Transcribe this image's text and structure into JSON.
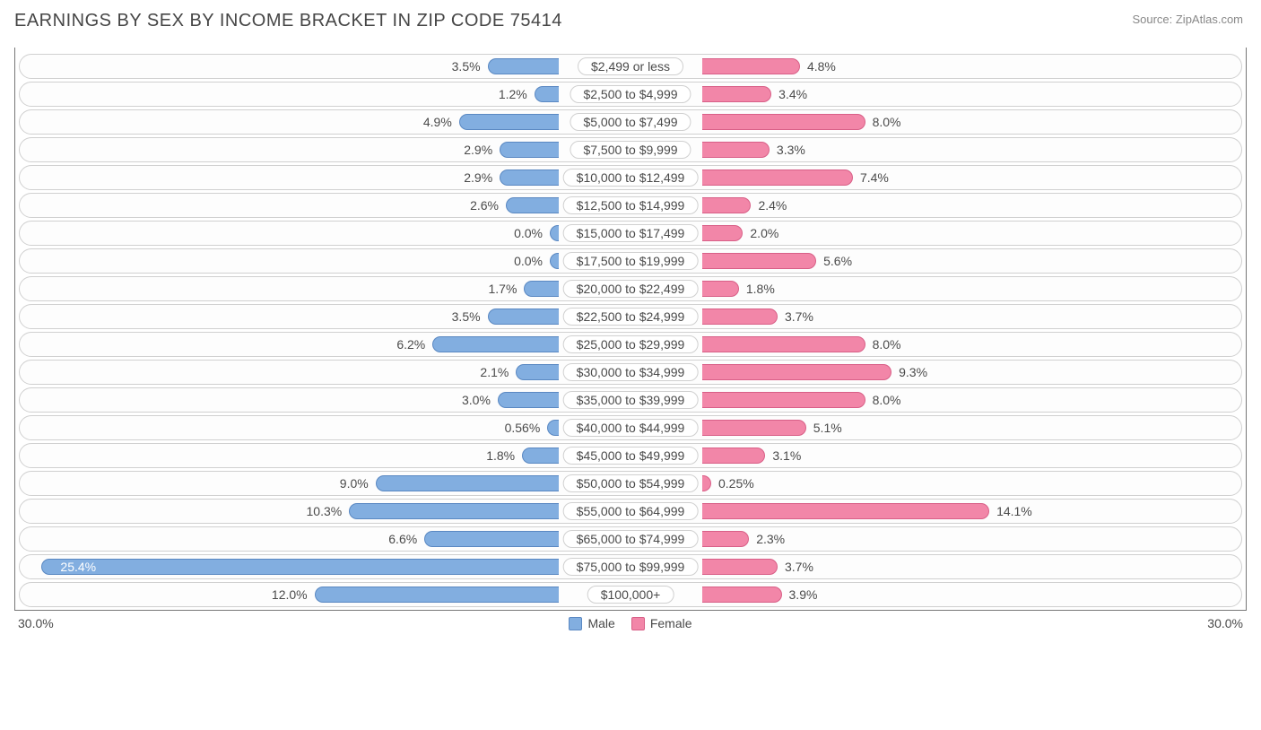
{
  "title": "EARNINGS BY SEX BY INCOME BRACKET IN ZIP CODE 75414",
  "source": "Source: ZipAtlas.com",
  "chart": {
    "type": "diverging-bar",
    "axis_max": 30.0,
    "axis_label_left": "30.0%",
    "axis_label_right": "30.0%",
    "colors": {
      "male_fill": "#82aee0",
      "male_border": "#5a88c2",
      "female_fill": "#f286a8",
      "female_border": "#d85f87",
      "row_border": "#d0d0d0",
      "row_bg": "#fdfdfd",
      "text": "#4a4a4a",
      "axis": "#777777"
    },
    "legend": {
      "male_label": "Male",
      "female_label": "Female"
    },
    "rows": [
      {
        "category": "$2,499 or less",
        "male": 3.5,
        "male_label": "3.5%",
        "female": 4.8,
        "female_label": "4.8%"
      },
      {
        "category": "$2,500 to $4,999",
        "male": 1.2,
        "male_label": "1.2%",
        "female": 3.4,
        "female_label": "3.4%"
      },
      {
        "category": "$5,000 to $7,499",
        "male": 4.9,
        "male_label": "4.9%",
        "female": 8.0,
        "female_label": "8.0%"
      },
      {
        "category": "$7,500 to $9,999",
        "male": 2.9,
        "male_label": "2.9%",
        "female": 3.3,
        "female_label": "3.3%"
      },
      {
        "category": "$10,000 to $12,499",
        "male": 2.9,
        "male_label": "2.9%",
        "female": 7.4,
        "female_label": "7.4%"
      },
      {
        "category": "$12,500 to $14,999",
        "male": 2.6,
        "male_label": "2.6%",
        "female": 2.4,
        "female_label": "2.4%"
      },
      {
        "category": "$15,000 to $17,499",
        "male": 0.0,
        "male_label": "0.0%",
        "female": 2.0,
        "female_label": "2.0%"
      },
      {
        "category": "$17,500 to $19,999",
        "male": 0.0,
        "male_label": "0.0%",
        "female": 5.6,
        "female_label": "5.6%"
      },
      {
        "category": "$20,000 to $22,499",
        "male": 1.7,
        "male_label": "1.7%",
        "female": 1.8,
        "female_label": "1.8%"
      },
      {
        "category": "$22,500 to $24,999",
        "male": 3.5,
        "male_label": "3.5%",
        "female": 3.7,
        "female_label": "3.7%"
      },
      {
        "category": "$25,000 to $29,999",
        "male": 6.2,
        "male_label": "6.2%",
        "female": 8.0,
        "female_label": "8.0%"
      },
      {
        "category": "$30,000 to $34,999",
        "male": 2.1,
        "male_label": "2.1%",
        "female": 9.3,
        "female_label": "9.3%"
      },
      {
        "category": "$35,000 to $39,999",
        "male": 3.0,
        "male_label": "3.0%",
        "female": 8.0,
        "female_label": "8.0%"
      },
      {
        "category": "$40,000 to $44,999",
        "male": 0.56,
        "male_label": "0.56%",
        "female": 5.1,
        "female_label": "5.1%"
      },
      {
        "category": "$45,000 to $49,999",
        "male": 1.8,
        "male_label": "1.8%",
        "female": 3.1,
        "female_label": "3.1%"
      },
      {
        "category": "$50,000 to $54,999",
        "male": 9.0,
        "male_label": "9.0%",
        "female": 0.25,
        "female_label": "0.25%"
      },
      {
        "category": "$55,000 to $64,999",
        "male": 10.3,
        "male_label": "10.3%",
        "female": 14.1,
        "female_label": "14.1%"
      },
      {
        "category": "$65,000 to $74,999",
        "male": 6.6,
        "male_label": "6.6%",
        "female": 2.3,
        "female_label": "2.3%"
      },
      {
        "category": "$75,000 to $99,999",
        "male": 25.4,
        "male_label": "25.4%",
        "female": 3.7,
        "female_label": "3.7%",
        "male_label_inside": true
      },
      {
        "category": "$100,000+",
        "male": 12.0,
        "male_label": "12.0%",
        "female": 3.9,
        "female_label": "3.9%"
      }
    ]
  }
}
